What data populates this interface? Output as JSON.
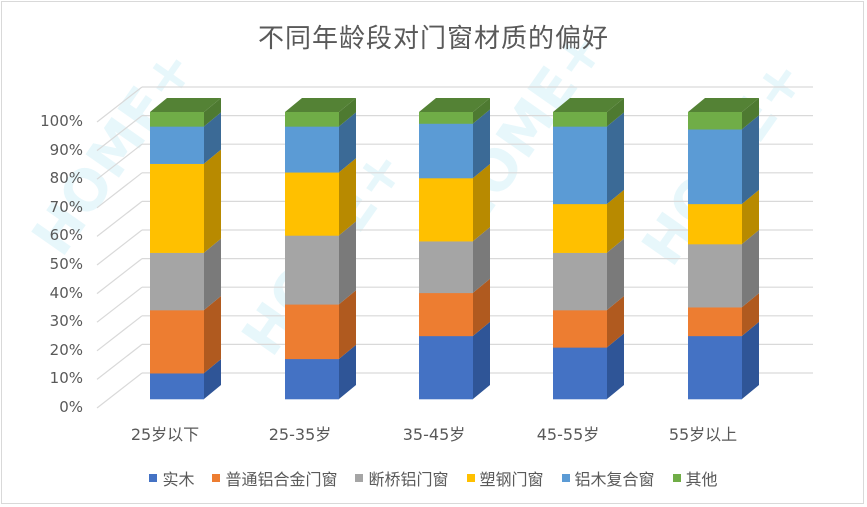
{
  "chart_data": {
    "type": "bar",
    "subtype": "stacked-percent-3d",
    "title": "不同年龄段对门窗材质的偏好",
    "xlabel": "",
    "ylabel": "",
    "ylim": [
      0,
      100
    ],
    "yticks": [
      "0%",
      "10%",
      "20%",
      "30%",
      "40%",
      "50%",
      "60%",
      "70%",
      "80%",
      "90%",
      "100%"
    ],
    "categories": [
      "25岁以下",
      "25-35岁",
      "35-45岁",
      "45-55岁",
      "55岁以上"
    ],
    "series": [
      {
        "name": "实木",
        "color": "#4472C4",
        "side": "#2F5597",
        "values": [
          9,
          14,
          22,
          18,
          22
        ]
      },
      {
        "name": "普通铝合金门窗",
        "color": "#ED7D31",
        "side": "#B05A1F",
        "values": [
          22,
          19,
          15,
          13,
          10
        ]
      },
      {
        "name": "断桥铝门窗",
        "color": "#A5A5A5",
        "side": "#7A7A7A",
        "values": [
          20,
          24,
          18,
          20,
          22
        ]
      },
      {
        "name": "塑钢门窗",
        "color": "#FFC000",
        "side": "#B88A00",
        "values": [
          31,
          22,
          22,
          17,
          14
        ]
      },
      {
        "name": "铝木复合窗",
        "color": "#5B9BD5",
        "side": "#3B6A96",
        "values": [
          13,
          16,
          19,
          27,
          26
        ]
      },
      {
        "name": "其他",
        "color": "#70AD47",
        "side": "#4E7A31",
        "values": [
          5,
          5,
          4,
          5,
          6
        ]
      }
    ],
    "grid": true,
    "legend_position": "bottom"
  },
  "watermark": "HOME+"
}
